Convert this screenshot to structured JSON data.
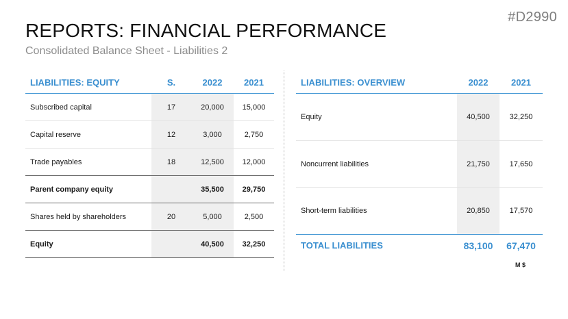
{
  "code": "#D2990",
  "title": "REPORTS: FINANCIAL PERFORMANCE",
  "subtitle": "Consolidated Balance Sheet - Liabilities 2",
  "left_table": {
    "headers": {
      "label": "LIABILITIES: EQUITY",
      "s": "S.",
      "y1": "2022",
      "y2": "2021"
    },
    "rows": [
      {
        "label": "Subscribed capital",
        "s": "17",
        "y1": "20,000",
        "y2": "15,000"
      },
      {
        "label": "Capital reserve",
        "s": "12",
        "y1": "3,000",
        "y2": "2,750"
      },
      {
        "label": "Trade payables",
        "s": "18",
        "y1": "12,500",
        "y2": "12,000"
      },
      {
        "label": "Parent company equity",
        "s": "",
        "y1": "35,500",
        "y2": "29,750"
      },
      {
        "label": "Shares held by shareholders",
        "s": "20",
        "y1": "5,000",
        "y2": "2,500"
      },
      {
        "label": "Equity",
        "s": "",
        "y1": "40,500",
        "y2": "32,250"
      }
    ]
  },
  "right_table": {
    "headers": {
      "label": "LIABILITIES: OVERVIEW",
      "y1": "2022",
      "y2": "2021"
    },
    "rows": [
      {
        "label": "Equity",
        "y1": "40,500",
        "y2": "32,250"
      },
      {
        "label": "Noncurrent liabilities",
        "y1": "21,750",
        "y2": "17,650"
      },
      {
        "label": "Short-term liabilities",
        "y1": "20,850",
        "y2": "17,570"
      }
    ],
    "total": {
      "label": "TOTAL LIABILITIES",
      "y1": "83,100",
      "y2": "67,470"
    },
    "unit": "M $"
  }
}
